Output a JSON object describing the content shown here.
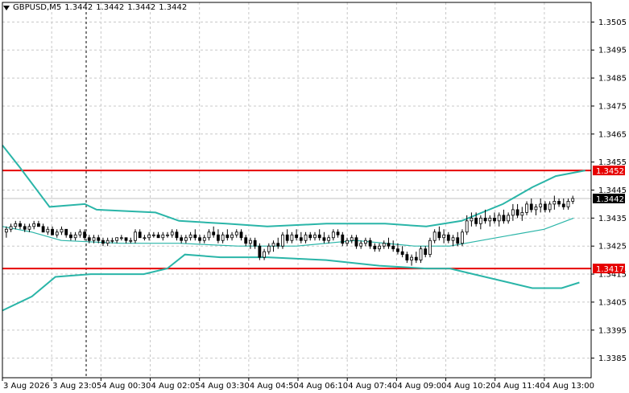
{
  "header": {
    "symbol_label": "GBPUSD,M5",
    "open": "1.3442",
    "high": "1.3442",
    "low": "1.3442",
    "close": "1.3442"
  },
  "colors": {
    "background": "#ffffff",
    "grid": "#c8c8c8",
    "candle": "#000000",
    "bands": "#2ab5a8",
    "level_line": "#e60000",
    "price_tag_bg": "#000000",
    "level_tag_bg": "#e60000"
  },
  "chart_data": {
    "type": "candlestick",
    "symbol": "GBPUSD",
    "timeframe": "M5",
    "ylim": [
      1.3378,
      1.3512
    ],
    "y_ticks": [
      "1.3505",
      "1.3495",
      "1.3485",
      "1.3475",
      "1.3465",
      "1.3455",
      "1.3445",
      "1.3435",
      "1.3425",
      "1.3415",
      "1.3405",
      "1.3395",
      "1.3385"
    ],
    "x_ticks": [
      "3 Aug 2026",
      "3 Aug 23:05",
      "4 Aug 00:30",
      "4 Aug 02:05",
      "4 Aug 03:30",
      "4 Aug 04:50",
      "4 Aug 06:10",
      "4 Aug 07:40",
      "4 Aug 09:00",
      "4 Aug 10:20",
      "4 Aug 11:40",
      "4 Aug 13:00"
    ],
    "current_price": "1.3442",
    "levels": [
      {
        "label": "1.3452",
        "value": 1.3452
      },
      {
        "label": "1.3417",
        "value": 1.3417
      }
    ],
    "bands": {
      "upper": [
        [
          0,
          1.3461
        ],
        [
          0.03,
          1.3453
        ],
        [
          0.08,
          1.3439
        ],
        [
          0.14,
          1.344
        ],
        [
          0.16,
          1.3438
        ],
        [
          0.26,
          1.3437
        ],
        [
          0.3,
          1.3434
        ],
        [
          0.38,
          1.3433
        ],
        [
          0.45,
          1.3432
        ],
        [
          0.55,
          1.3433
        ],
        [
          0.65,
          1.3433
        ],
        [
          0.72,
          1.3432
        ],
        [
          0.78,
          1.3434
        ],
        [
          0.85,
          1.344
        ],
        [
          0.9,
          1.3446
        ],
        [
          0.94,
          1.345
        ],
        [
          0.99,
          1.3452
        ]
      ],
      "middle": [
        [
          0,
          1.3432
        ],
        [
          0.05,
          1.343
        ],
        [
          0.1,
          1.3427
        ],
        [
          0.2,
          1.3426
        ],
        [
          0.3,
          1.3426
        ],
        [
          0.4,
          1.3425
        ],
        [
          0.5,
          1.3425
        ],
        [
          0.6,
          1.3427
        ],
        [
          0.7,
          1.3425
        ],
        [
          0.76,
          1.3425
        ],
        [
          0.84,
          1.3428
        ],
        [
          0.92,
          1.3431
        ],
        [
          0.97,
          1.3435
        ]
      ],
      "lower": [
        [
          0,
          1.3402
        ],
        [
          0.05,
          1.3407
        ],
        [
          0.09,
          1.3414
        ],
        [
          0.15,
          1.3415
        ],
        [
          0.24,
          1.3415
        ],
        [
          0.28,
          1.3417
        ],
        [
          0.31,
          1.3422
        ],
        [
          0.37,
          1.3421
        ],
        [
          0.45,
          1.3421
        ],
        [
          0.55,
          1.342
        ],
        [
          0.64,
          1.3418
        ],
        [
          0.72,
          1.3417
        ],
        [
          0.76,
          1.3417
        ],
        [
          0.8,
          1.3415
        ],
        [
          0.86,
          1.3412
        ],
        [
          0.9,
          1.341
        ],
        [
          0.95,
          1.341
        ],
        [
          0.98,
          1.3412
        ]
      ]
    },
    "candles": [
      [
        1.343,
        1.3432,
        1.3428,
        1.3431
      ],
      [
        1.3431,
        1.3433,
        1.343,
        1.3432
      ],
      [
        1.3432,
        1.3434,
        1.3431,
        1.3433
      ],
      [
        1.3433,
        1.3434,
        1.3431,
        1.3432
      ],
      [
        1.3432,
        1.3433,
        1.343,
        1.3431
      ],
      [
        1.3431,
        1.3433,
        1.343,
        1.3432
      ],
      [
        1.3432,
        1.3434,
        1.3431,
        1.3433
      ],
      [
        1.3433,
        1.3434,
        1.3432,
        1.3432
      ],
      [
        1.3432,
        1.3433,
        1.343,
        1.343
      ],
      [
        1.343,
        1.3432,
        1.3429,
        1.3431
      ],
      [
        1.3431,
        1.3432,
        1.3429,
        1.3429
      ],
      [
        1.3429,
        1.3431,
        1.3428,
        1.343
      ],
      [
        1.343,
        1.3432,
        1.3429,
        1.3431
      ],
      [
        1.3431,
        1.3431,
        1.3428,
        1.3429
      ],
      [
        1.3429,
        1.343,
        1.3427,
        1.3428
      ],
      [
        1.3428,
        1.343,
        1.3427,
        1.3429
      ],
      [
        1.3429,
        1.3431,
        1.3428,
        1.343
      ],
      [
        1.343,
        1.3431,
        1.3427,
        1.3428
      ],
      [
        1.3428,
        1.3429,
        1.3426,
        1.3427
      ],
      [
        1.3427,
        1.3429,
        1.3426,
        1.3428
      ],
      [
        1.3428,
        1.3429,
        1.3426,
        1.3427
      ],
      [
        1.3427,
        1.3428,
        1.3425,
        1.3426
      ],
      [
        1.3426,
        1.3428,
        1.3425,
        1.3427
      ],
      [
        1.3427,
        1.3428,
        1.3426,
        1.3427
      ],
      [
        1.3427,
        1.3428,
        1.3426,
        1.3428
      ],
      [
        1.3428,
        1.3429,
        1.3427,
        1.3428
      ],
      [
        1.3428,
        1.3428,
        1.3426,
        1.3427
      ],
      [
        1.3427,
        1.3428,
        1.3426,
        1.3427
      ],
      [
        1.3427,
        1.3431,
        1.3426,
        1.343
      ],
      [
        1.343,
        1.3431,
        1.3428,
        1.3428
      ],
      [
        1.3428,
        1.3429,
        1.3427,
        1.3428
      ],
      [
        1.3428,
        1.343,
        1.3427,
        1.3429
      ],
      [
        1.3429,
        1.343,
        1.3428,
        1.3429
      ],
      [
        1.3429,
        1.343,
        1.3428,
        1.3428
      ],
      [
        1.3428,
        1.343,
        1.3427,
        1.3429
      ],
      [
        1.3429,
        1.343,
        1.3428,
        1.3429
      ],
      [
        1.3429,
        1.3431,
        1.3428,
        1.343
      ],
      [
        1.343,
        1.3431,
        1.3427,
        1.3428
      ],
      [
        1.3428,
        1.3429,
        1.3426,
        1.3427
      ],
      [
        1.3427,
        1.3429,
        1.3426,
        1.3428
      ],
      [
        1.3428,
        1.343,
        1.3427,
        1.3429
      ],
      [
        1.3429,
        1.3431,
        1.3427,
        1.3428
      ],
      [
        1.3428,
        1.3429,
        1.3426,
        1.3427
      ],
      [
        1.3427,
        1.3429,
        1.3426,
        1.3428
      ],
      [
        1.3428,
        1.3431,
        1.3427,
        1.343
      ],
      [
        1.343,
        1.3432,
        1.3428,
        1.3429
      ],
      [
        1.3429,
        1.3431,
        1.3426,
        1.3427
      ],
      [
        1.3427,
        1.343,
        1.3426,
        1.3429
      ],
      [
        1.3429,
        1.3431,
        1.3427,
        1.3428
      ],
      [
        1.3428,
        1.343,
        1.3427,
        1.3429
      ],
      [
        1.3429,
        1.3431,
        1.3428,
        1.343
      ],
      [
        1.343,
        1.3431,
        1.3427,
        1.3428
      ],
      [
        1.3428,
        1.3429,
        1.3425,
        1.3426
      ],
      [
        1.3426,
        1.3428,
        1.3424,
        1.3427
      ],
      [
        1.3427,
        1.3428,
        1.3424,
        1.3425
      ],
      [
        1.3425,
        1.3426,
        1.342,
        1.3421
      ],
      [
        1.3421,
        1.3424,
        1.342,
        1.3423
      ],
      [
        1.3423,
        1.3426,
        1.3422,
        1.3425
      ],
      [
        1.3425,
        1.3427,
        1.3423,
        1.3426
      ],
      [
        1.3426,
        1.3428,
        1.3424,
        1.3425
      ],
      [
        1.3425,
        1.343,
        1.3424,
        1.3429
      ],
      [
        1.3429,
        1.3431,
        1.3426,
        1.3427
      ],
      [
        1.3427,
        1.343,
        1.3426,
        1.3429
      ],
      [
        1.3429,
        1.3431,
        1.3427,
        1.3428
      ],
      [
        1.3428,
        1.343,
        1.3426,
        1.3427
      ],
      [
        1.3427,
        1.343,
        1.3426,
        1.3429
      ],
      [
        1.3429,
        1.343,
        1.3427,
        1.3428
      ],
      [
        1.3428,
        1.343,
        1.3427,
        1.3429
      ],
      [
        1.3429,
        1.3431,
        1.3427,
        1.3428
      ],
      [
        1.3428,
        1.343,
        1.3426,
        1.3427
      ],
      [
        1.3427,
        1.3429,
        1.3426,
        1.3428
      ],
      [
        1.3428,
        1.3431,
        1.3427,
        1.343
      ],
      [
        1.343,
        1.3431,
        1.3428,
        1.3429
      ],
      [
        1.3429,
        1.343,
        1.3425,
        1.3426
      ],
      [
        1.3426,
        1.3428,
        1.3425,
        1.3427
      ],
      [
        1.3427,
        1.3429,
        1.3426,
        1.3428
      ],
      [
        1.3428,
        1.3429,
        1.3424,
        1.3425
      ],
      [
        1.3425,
        1.3427,
        1.3424,
        1.3426
      ],
      [
        1.3426,
        1.3428,
        1.3425,
        1.3427
      ],
      [
        1.3427,
        1.3428,
        1.3424,
        1.3425
      ],
      [
        1.3425,
        1.3426,
        1.3423,
        1.3424
      ],
      [
        1.3424,
        1.3426,
        1.3423,
        1.3425
      ],
      [
        1.3425,
        1.3427,
        1.3424,
        1.3426
      ],
      [
        1.3426,
        1.3428,
        1.3424,
        1.3425
      ],
      [
        1.3425,
        1.3427,
        1.3423,
        1.3424
      ],
      [
        1.3424,
        1.3426,
        1.3422,
        1.3423
      ],
      [
        1.3423,
        1.3425,
        1.3421,
        1.3422
      ],
      [
        1.3422,
        1.3423,
        1.3419,
        1.342
      ],
      [
        1.342,
        1.3422,
        1.3418,
        1.3421
      ],
      [
        1.3421,
        1.3423,
        1.3419,
        1.342
      ],
      [
        1.342,
        1.3425,
        1.3419,
        1.3424
      ],
      [
        1.3424,
        1.3425,
        1.3421,
        1.3422
      ],
      [
        1.3422,
        1.3428,
        1.3421,
        1.3427
      ],
      [
        1.3427,
        1.3431,
        1.3426,
        1.343
      ],
      [
        1.343,
        1.3432,
        1.3427,
        1.3428
      ],
      [
        1.3428,
        1.3431,
        1.3426,
        1.3429
      ],
      [
        1.3429,
        1.343,
        1.3426,
        1.3427
      ],
      [
        1.3427,
        1.3429,
        1.3425,
        1.3428
      ],
      [
        1.3428,
        1.343,
        1.3425,
        1.3426
      ],
      [
        1.3426,
        1.3431,
        1.3425,
        1.343
      ],
      [
        1.343,
        1.3436,
        1.3429,
        1.3434
      ],
      [
        1.3434,
        1.3437,
        1.3432,
        1.3435
      ],
      [
        1.3435,
        1.3437,
        1.3432,
        1.3433
      ],
      [
        1.3433,
        1.3436,
        1.3431,
        1.3435
      ],
      [
        1.3435,
        1.3438,
        1.3433,
        1.3434
      ],
      [
        1.3434,
        1.3436,
        1.3432,
        1.3435
      ],
      [
        1.3435,
        1.3437,
        1.3433,
        1.3434
      ],
      [
        1.3434,
        1.3437,
        1.3432,
        1.3436
      ],
      [
        1.3436,
        1.3438,
        1.3433,
        1.3434
      ],
      [
        1.3434,
        1.3437,
        1.3433,
        1.3436
      ],
      [
        1.3436,
        1.344,
        1.3434,
        1.3438
      ],
      [
        1.3438,
        1.344,
        1.3435,
        1.3436
      ],
      [
        1.3436,
        1.3439,
        1.3434,
        1.3437
      ],
      [
        1.3437,
        1.3441,
        1.3436,
        1.344
      ],
      [
        1.344,
        1.3442,
        1.3437,
        1.3438
      ],
      [
        1.3438,
        1.344,
        1.3436,
        1.3439
      ],
      [
        1.3439,
        1.3442,
        1.3437,
        1.344
      ],
      [
        1.344,
        1.3441,
        1.3437,
        1.3438
      ],
      [
        1.3438,
        1.3441,
        1.3437,
        1.344
      ],
      [
        1.344,
        1.3443,
        1.3438,
        1.3441
      ],
      [
        1.3441,
        1.3442,
        1.3439,
        1.344
      ],
      [
        1.344,
        1.3442,
        1.3438,
        1.3439
      ],
      [
        1.3439,
        1.3442,
        1.3438,
        1.3441
      ],
      [
        1.3441,
        1.3443,
        1.344,
        1.3442
      ]
    ]
  }
}
